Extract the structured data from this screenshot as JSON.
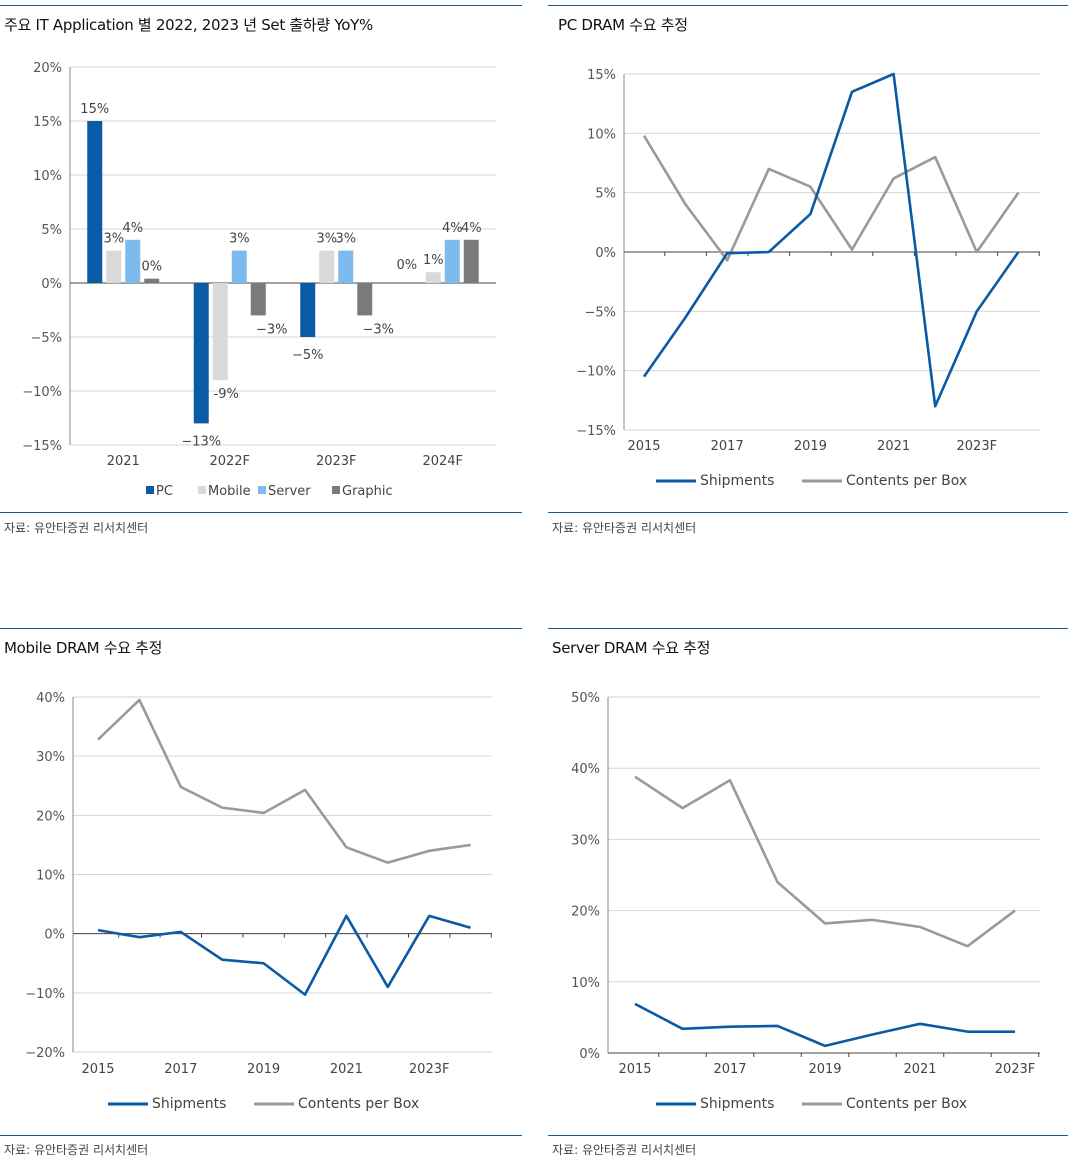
{
  "panels": [
    {
      "title": "주요 IT Application 별 2022, 2023 년 Set 출하량 YoY%",
      "source": "자료: 유안타증권 리서치센터",
      "chart_data": {
        "type": "bar",
        "categories": [
          "2021",
          "2022F",
          "2023F",
          "2024F"
        ],
        "y_ticks": [
          "20%",
          "15%",
          "10%",
          "5%",
          "0%",
          "−5%",
          "−10%",
          "−15%"
        ],
        "ylim": [
          -15,
          20
        ],
        "series": [
          {
            "name": "PC",
            "color": "#0b5aa6",
            "values": [
              15,
              -13,
              -5,
              0
            ],
            "labels": [
              "15%",
              "−13%",
              "−5%",
              ""
            ]
          },
          {
            "name": "Mobile",
            "color": "#d9d9d9",
            "values": [
              3,
              -9,
              3,
              1
            ],
            "labels": [
              "3%",
              "-9%",
              "3%",
              "1%"
            ]
          },
          {
            "name": "Server",
            "color": "#7dbbef",
            "values": [
              4,
              3,
              3,
              4
            ],
            "labels": [
              "4%",
              "3%",
              "3%",
              "4%"
            ]
          },
          {
            "name": "Graphic",
            "color": "#7a7a7a",
            "values": [
              0.4,
              -3,
              -3,
              4
            ],
            "labels": [
              "0%",
              "−3%",
              "−3%",
              "4%"
            ]
          }
        ],
        "extra_labels": [
          "0%"
        ],
        "grid": true,
        "legend": "bottom"
      }
    },
    {
      "title": "PC DRAM 수요 추정",
      "source": "자료: 유안타증권 리서치센터",
      "chart_data": {
        "type": "line",
        "x": [
          2015,
          2016,
          2017,
          2018,
          2019,
          2020,
          2021,
          2022,
          2023,
          2024
        ],
        "x_tick_labels": [
          "2015",
          "2017",
          "2019",
          "2021",
          "2023F"
        ],
        "y_ticks": [
          "15%",
          "10%",
          "5%",
          "0%",
          "−5%",
          "−10%",
          "−15%"
        ],
        "ylim": [
          -15,
          15
        ],
        "series": [
          {
            "name": "Shipments",
            "color": "#0b5aa6",
            "values": [
              -10.5,
              -5.5,
              -0.1,
              0,
              3.2,
              13.5,
              15,
              -13,
              -5,
              0
            ]
          },
          {
            "name": "Contents per Box",
            "color": "#9a9a9a",
            "values": [
              9.8,
              4,
              -0.7,
              7,
              5.5,
              0.2,
              6.2,
              8,
              0,
              5
            ]
          }
        ],
        "grid": true,
        "legend": "bottom"
      }
    },
    {
      "title": "Mobile DRAM 수요 추정",
      "source": "자료: 유안타증권 리서치센터",
      "chart_data": {
        "type": "line",
        "x": [
          2015,
          2016,
          2017,
          2018,
          2019,
          2020,
          2021,
          2022,
          2023,
          2024
        ],
        "x_tick_labels": [
          "2015",
          "2017",
          "2019",
          "2021",
          "2023F"
        ],
        "y_ticks": [
          "40%",
          "30%",
          "20%",
          "10%",
          "0%",
          "−10%",
          "−20%"
        ],
        "ylim": [
          -20,
          40
        ],
        "series": [
          {
            "name": "Shipments",
            "color": "#0b5aa6",
            "values": [
              0.6,
              -0.6,
              0.3,
              -4.4,
              -5,
              -10.3,
              3,
              -9,
              3,
              1
            ]
          },
          {
            "name": "Contents per Box",
            "color": "#9a9a9a",
            "values": [
              32.8,
              39.5,
              24.8,
              21.3,
              20.4,
              24.3,
              14.6,
              12,
              14,
              15
            ]
          }
        ],
        "grid": true,
        "legend": "bottom"
      }
    },
    {
      "title": "Server DRAM 수요 추정",
      "source": "자료: 유안타증권 리서치센터",
      "chart_data": {
        "type": "line",
        "x": [
          2015,
          2016,
          2017,
          2018,
          2019,
          2020,
          2021,
          2022,
          2023
        ],
        "x_tick_labels": [
          "2015",
          "2017",
          "2019",
          "2021",
          "2023F"
        ],
        "y_ticks": [
          "50%",
          "40%",
          "30%",
          "20%",
          "10%",
          "0%"
        ],
        "ylim": [
          0,
          50
        ],
        "series": [
          {
            "name": "Shipments",
            "color": "#0b5aa6",
            "values": [
              6.9,
              3.4,
              3.7,
              3.8,
              1,
              2.6,
              4.1,
              3,
              3
            ]
          },
          {
            "name": "Contents per Box",
            "color": "#9a9a9a",
            "values": [
              38.8,
              34.4,
              38.3,
              24,
              18.2,
              18.7,
              17.7,
              15,
              20
            ]
          }
        ],
        "grid": true,
        "legend": "bottom"
      }
    }
  ]
}
